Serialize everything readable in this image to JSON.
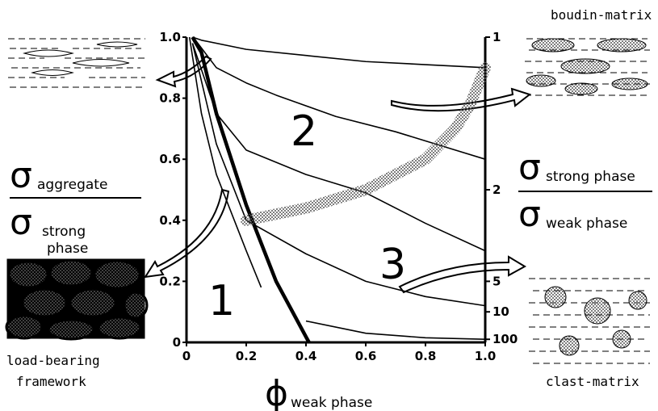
{
  "chart_data": {
    "type": "line",
    "xlabel": {
      "symbol": "ϕ",
      "sub": "weak phase"
    },
    "ylabel": {
      "num_symbol": "σ",
      "num_sub": "aggregate",
      "den_symbol": "σ",
      "den_sub_1": "strong",
      "den_sub_2": "phase"
    },
    "y2label": {
      "num_symbol": "σ",
      "num_sub": "strong phase",
      "den_symbol": "σ",
      "den_sub": "weak phase"
    },
    "xlim": [
      0,
      1
    ],
    "ylim": [
      0,
      1
    ],
    "xticks": [
      0,
      0.2,
      0.4,
      0.6,
      0.8,
      {
        "value": 1,
        "label": "1.0"
      }
    ],
    "yticks": [
      0,
      0.2,
      0.4,
      0.6,
      0.8,
      {
        "value": 1,
        "label": "1.0"
      }
    ],
    "y2ticks": [
      1,
      2,
      5,
      10,
      100
    ],
    "y2scale": "reciprocal",
    "regions": [
      "1",
      "2",
      "3"
    ],
    "insets": {
      "boudin": "boudin-matrix",
      "framework_1": "load-bearing",
      "framework_2": "framework",
      "clast": "clast-matrix"
    },
    "series": [
      {
        "style": "thin",
        "x": [
          0.02,
          0.05,
          0.2,
          0.4,
          0.6,
          0.8,
          1.0
        ],
        "values": [
          1.0,
          0.99,
          0.96,
          0.94,
          0.92,
          0.91,
          0.9
        ]
      },
      {
        "style": "thin",
        "x": [
          0.03,
          0.1,
          0.2,
          0.3,
          0.5,
          0.7,
          0.9,
          1.0
        ],
        "values": [
          0.99,
          0.9,
          0.85,
          0.81,
          0.74,
          0.69,
          0.63,
          0.6
        ]
      },
      {
        "style": "thin",
        "x": [
          0.02,
          0.1,
          0.2,
          0.4,
          0.6,
          0.8,
          1.0
        ],
        "values": [
          0.98,
          0.75,
          0.63,
          0.55,
          0.49,
          0.39,
          0.3
        ]
      },
      {
        "style": "thin",
        "x": [
          0.02,
          0.1,
          0.2,
          0.4,
          0.6,
          0.8,
          1.0
        ],
        "values": [
          0.98,
          0.65,
          0.4,
          0.29,
          0.2,
          0.15,
          0.12
        ]
      },
      {
        "style": "thin",
        "x": [
          0.4,
          0.6,
          0.8,
          1.0
        ],
        "values": [
          0.07,
          0.03,
          0.015,
          0.01
        ]
      },
      {
        "style": "thin",
        "x": [
          0.01,
          0.05,
          0.1,
          0.2,
          0.25
        ],
        "values": [
          1.0,
          0.75,
          0.55,
          0.3,
          0.18
        ]
      },
      {
        "style": "thick",
        "x": [
          0.02,
          0.05,
          0.1,
          0.2,
          0.3,
          0.41
        ],
        "values": [
          1.0,
          0.95,
          0.75,
          0.45,
          0.2,
          0
        ]
      },
      {
        "style": "stipple",
        "x": [
          0.2,
          0.4,
          0.6,
          0.8,
          0.9,
          0.95,
          1.0
        ],
        "values": [
          0.4,
          0.44,
          0.5,
          0.6,
          0.7,
          0.78,
          0.9
        ]
      }
    ]
  }
}
